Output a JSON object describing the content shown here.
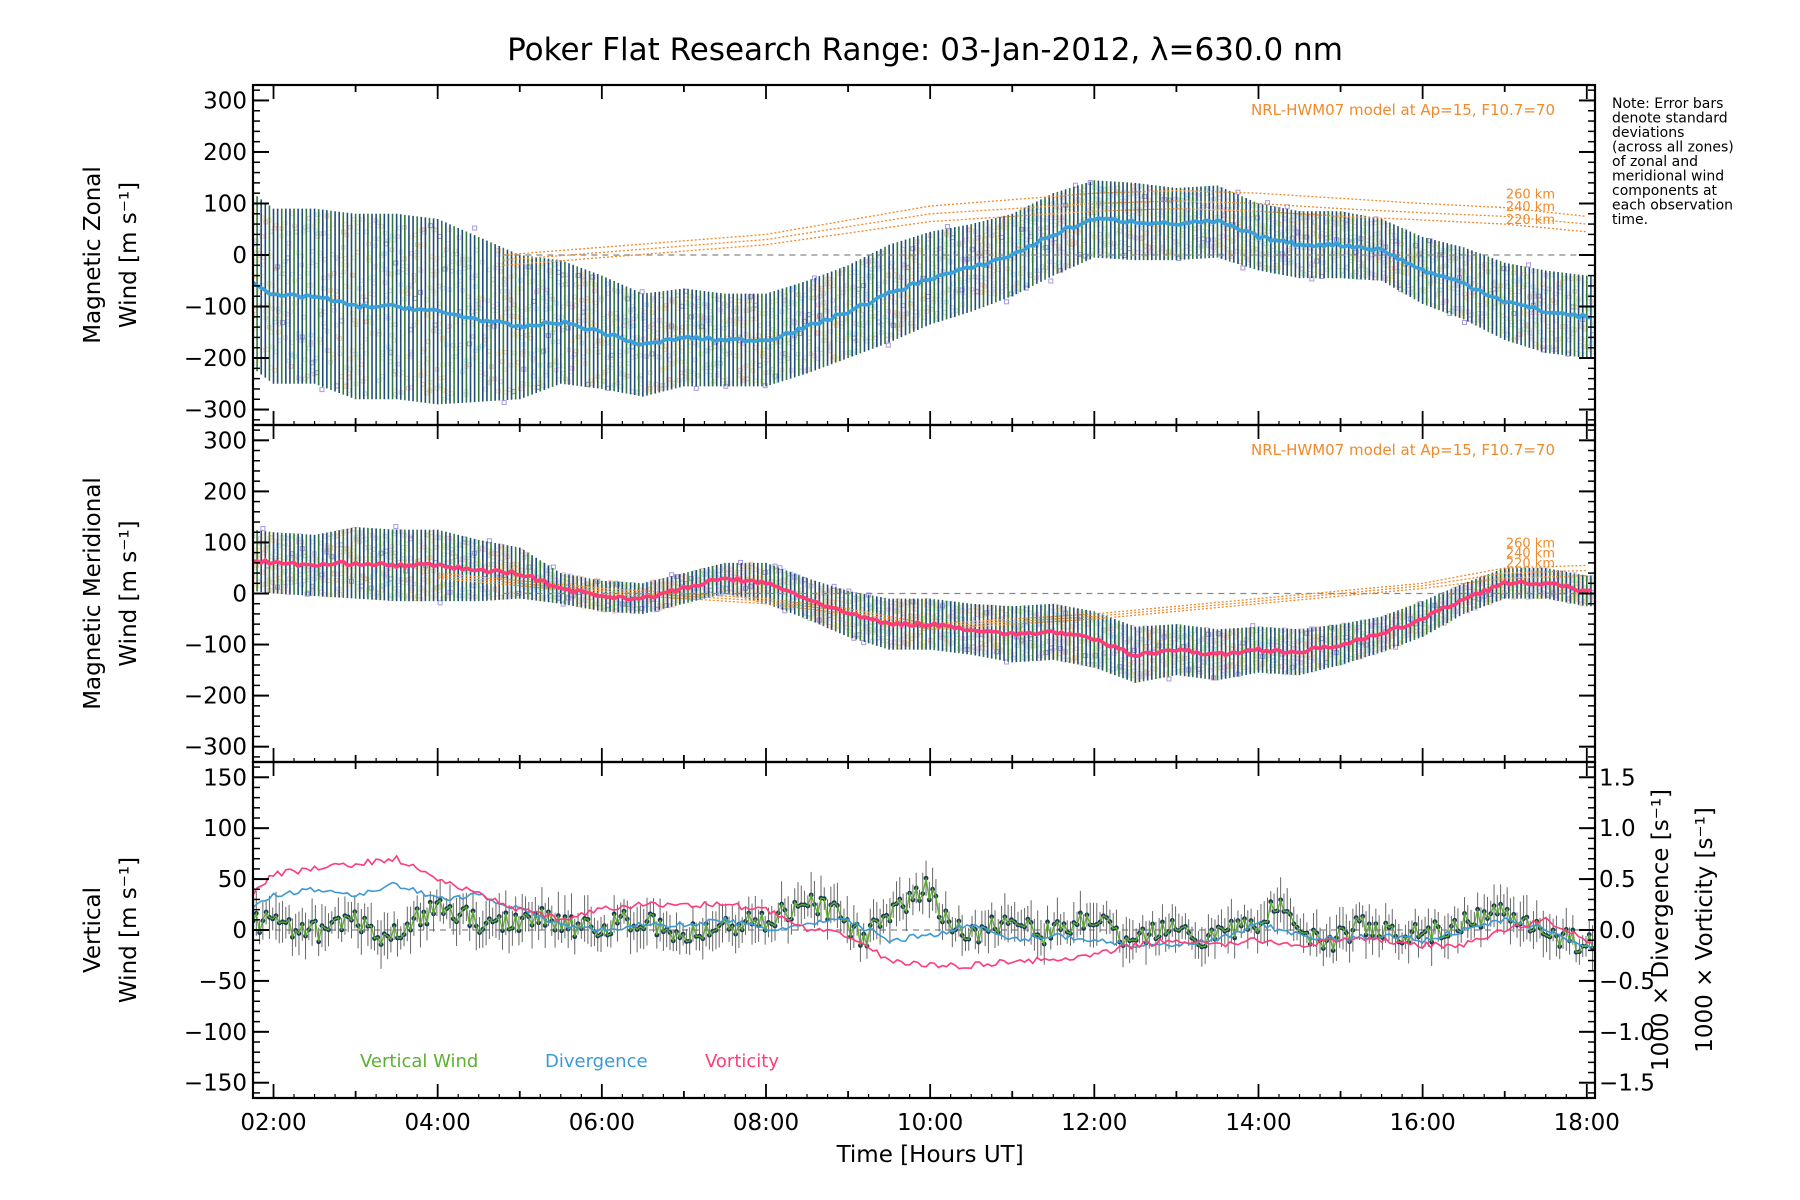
{
  "title": "Poker Flat Research Range: 03-Jan-2012, λ=630.0 nm",
  "note": [
    "Note: Error bars",
    "denote standard",
    "deviations",
    "(across all zones)",
    "of zonal and",
    "meridional wind",
    "components at",
    "each observation",
    "time."
  ],
  "colors": {
    "zonal": "#3aa0dc",
    "meridional": "#ff3c78",
    "vertical": "#5db030",
    "divergence": "#3c9ad2",
    "vorticity": "#ff3c78",
    "model": "#f08a2a",
    "errorbar": "#1f4e79",
    "zone_cloud": "#f4b89a",
    "purple_points": "#a89ae0"
  },
  "chart_data": [
    {
      "type": "line",
      "panel": "zonal",
      "ylabel": [
        "Magnetic Zonal",
        "Wind [m s⁻¹]"
      ],
      "ylim": [
        -330,
        330
      ],
      "xlim": [
        1.75,
        18.1
      ],
      "yticks": [
        "300",
        "200",
        "100",
        "0",
        "−100",
        "−200",
        "−300"
      ],
      "model_label": "NRL-HWM07 model at Ap=15, F10.7=70",
      "model_heights": [
        "260 km",
        "240 km",
        "220 km"
      ],
      "model_series": [
        {
          "name": "260 km",
          "x": [
            4.8,
            8,
            10,
            12,
            13,
            14,
            15,
            16,
            17,
            18
          ],
          "y": [
            0,
            40,
            95,
            120,
            125,
            120,
            110,
            100,
            92,
            75
          ]
        },
        {
          "name": "240 km",
          "x": [
            4.8,
            8,
            10,
            12,
            13,
            14,
            15,
            16,
            17,
            18
          ],
          "y": [
            -10,
            30,
            80,
            100,
            105,
            100,
            90,
            82,
            75,
            60
          ]
        },
        {
          "name": "220 km",
          "x": [
            4.8,
            8,
            10,
            12,
            13,
            14,
            15,
            16,
            17,
            18
          ],
          "y": [
            -20,
            20,
            65,
            85,
            90,
            85,
            75,
            68,
            60,
            45
          ]
        }
      ],
      "series": [
        {
          "name": "Zonal mean",
          "x": [
            1.75,
            2,
            2.5,
            3,
            3.5,
            4,
            4.5,
            5,
            5.5,
            6,
            6.5,
            7,
            7.5,
            8,
            8.5,
            9,
            9.5,
            10,
            10.5,
            11,
            11.5,
            12,
            12.5,
            13,
            13.5,
            14,
            14.5,
            15,
            15.5,
            16,
            16.5,
            17,
            17.5,
            18
          ],
          "y": [
            -50,
            -80,
            -80,
            -100,
            -100,
            -110,
            -125,
            -140,
            -130,
            -150,
            -175,
            -160,
            -165,
            -165,
            -140,
            -110,
            -75,
            -45,
            -25,
            0,
            40,
            70,
            65,
            60,
            65,
            35,
            20,
            20,
            10,
            -30,
            -55,
            -90,
            -110,
            -120
          ]
        }
      ],
      "error_bar_sd": [
        170,
        170,
        170,
        180,
        180,
        180,
        160,
        140,
        120,
        110,
        100,
        95,
        90,
        90,
        90,
        90,
        95,
        90,
        85,
        80,
        80,
        75,
        75,
        70,
        70,
        65,
        65,
        65,
        60,
        65,
        70,
        75,
        80,
        80
      ]
    },
    {
      "type": "line",
      "panel": "meridional",
      "ylabel": [
        "Magnetic Meridional",
        "Wind [m s⁻¹]"
      ],
      "ylim": [
        -330,
        330
      ],
      "xlim": [
        1.75,
        18.1
      ],
      "yticks": [
        "300",
        "200",
        "100",
        "0",
        "−100",
        "−200",
        "−300"
      ],
      "model_label": "NRL-HWM07 model at Ap=15, F10.7=70",
      "model_heights": [
        "260 km",
        "240 km",
        "220 km"
      ],
      "model_series": [
        {
          "name": "260 km",
          "x": [
            4,
            6,
            7,
            8,
            9,
            10,
            12,
            14,
            16,
            17,
            18
          ],
          "y": [
            40,
            10,
            0,
            -10,
            -30,
            -60,
            -40,
            -10,
            20,
            50,
            55
          ]
        },
        {
          "name": "240 km",
          "x": [
            4,
            6,
            7,
            8,
            9,
            10,
            12,
            14,
            16,
            17,
            18
          ],
          "y": [
            35,
            5,
            -5,
            -15,
            -35,
            -65,
            -45,
            -15,
            15,
            40,
            45
          ]
        },
        {
          "name": "220 km",
          "x": [
            4,
            6,
            7,
            8,
            9,
            10,
            12,
            14,
            16,
            17,
            18
          ],
          "y": [
            30,
            0,
            -10,
            -20,
            -40,
            -70,
            -50,
            -20,
            10,
            30,
            35
          ]
        }
      ],
      "series": [
        {
          "name": "Meridional mean",
          "x": [
            1.75,
            2,
            2.5,
            3,
            3.5,
            4,
            4.5,
            5,
            5.5,
            6,
            6.5,
            7,
            7.5,
            8,
            8.5,
            9,
            9.5,
            10,
            10.5,
            11,
            11.5,
            12,
            12.5,
            13,
            13.5,
            14,
            14.5,
            15,
            15.5,
            16,
            16.5,
            17,
            17.5,
            18
          ],
          "y": [
            65,
            60,
            55,
            60,
            55,
            55,
            45,
            40,
            10,
            -5,
            -10,
            10,
            30,
            20,
            -10,
            -40,
            -60,
            -60,
            -70,
            -80,
            -75,
            -90,
            -120,
            -110,
            -120,
            -110,
            -115,
            -100,
            -80,
            -50,
            -10,
            20,
            20,
            5
          ]
        }
      ],
      "error_bar_sd": [
        60,
        60,
        60,
        70,
        70,
        70,
        60,
        50,
        30,
        30,
        30,
        30,
        30,
        40,
        40,
        45,
        50,
        50,
        50,
        55,
        55,
        55,
        55,
        50,
        50,
        45,
        45,
        40,
        35,
        35,
        30,
        30,
        30,
        30
      ]
    },
    {
      "type": "line",
      "panel": "vertical",
      "ylabel": [
        "Vertical",
        "Wind [m s⁻¹]"
      ],
      "ylim": [
        -165,
        165
      ],
      "xlim": [
        1.75,
        18.1
      ],
      "yticks": [
        "150",
        "100",
        "50",
        "0",
        "−50",
        "−100",
        "−150"
      ],
      "y2label": [
        "1000 × Divergence [s⁻¹]",
        "1000 × Vorticity [s⁻¹]"
      ],
      "y2lim": [
        -1.65,
        1.65
      ],
      "y2ticks": [
        "1.5",
        "1.0",
        "0.5",
        "0.0",
        "−0.5",
        "−1.0",
        "−1.5"
      ],
      "xticks": [
        "02:00",
        "04:00",
        "06:00",
        "08:00",
        "10:00",
        "12:00",
        "14:00",
        "16:00",
        "18:00"
      ],
      "xtick_values": [
        2,
        4,
        6,
        8,
        10,
        12,
        14,
        16,
        18
      ],
      "xlabel": "Time [Hours UT]",
      "legend": [
        "Vertical Wind",
        "Divergence",
        "Vorticity"
      ],
      "series": [
        {
          "name": "Vertical Wind",
          "axis": "left",
          "x": [
            1.75,
            2,
            2.3,
            2.6,
            3,
            3.3,
            3.6,
            4,
            4.3,
            4.6,
            5,
            5.3,
            5.6,
            6,
            6.3,
            6.6,
            7,
            7.3,
            7.6,
            8,
            8.3,
            8.6,
            8.9,
            9.2,
            9.5,
            9.8,
            9.95,
            10.2,
            10.5,
            10.8,
            11,
            11.3,
            11.6,
            12,
            12.3,
            12.6,
            13,
            13.3,
            13.6,
            14,
            14.2,
            14.5,
            14.8,
            15,
            15.3,
            15.6,
            16,
            16.3,
            16.6,
            17,
            17.3,
            17.6,
            18
          ],
          "y": [
            5,
            10,
            -5,
            0,
            10,
            -15,
            5,
            20,
            15,
            5,
            10,
            15,
            5,
            0,
            10,
            5,
            -5,
            0,
            5,
            10,
            20,
            25,
            15,
            -10,
            15,
            30,
            40,
            10,
            -5,
            5,
            10,
            -5,
            0,
            15,
            -10,
            -5,
            10,
            -10,
            0,
            5,
            25,
            5,
            -15,
            -5,
            5,
            -5,
            0,
            -5,
            10,
            20,
            10,
            -5,
            -15
          ]
        },
        {
          "name": "Divergence",
          "axis": "right",
          "x": [
            1.75,
            2,
            2.5,
            3,
            3.5,
            4,
            4.5,
            5,
            5.5,
            6,
            6.5,
            7,
            7.5,
            8,
            8.5,
            9,
            9.5,
            10,
            10.5,
            11,
            11.5,
            12,
            12.5,
            13,
            13.5,
            14,
            14.5,
            15,
            15.5,
            16,
            16.5,
            17,
            17.5,
            18
          ],
          "y": [
            0.2,
            0.35,
            0.4,
            0.35,
            0.45,
            0.3,
            0.35,
            0.2,
            0.05,
            0.0,
            0.05,
            0.05,
            0.1,
            0.0,
            0.05,
            0.1,
            -0.1,
            -0.05,
            0.05,
            -0.1,
            -0.05,
            -0.1,
            -0.15,
            -0.15,
            -0.1,
            0.05,
            -0.05,
            -0.1,
            -0.05,
            -0.1,
            0.0,
            0.1,
            0.0,
            -0.15
          ]
        },
        {
          "name": "Vorticity",
          "axis": "right",
          "x": [
            1.75,
            2,
            2.5,
            3,
            3.5,
            4,
            4.5,
            5,
            5.5,
            6,
            6.5,
            7,
            7.5,
            8,
            8.5,
            9,
            9.5,
            10,
            10.5,
            11,
            11.5,
            12,
            12.5,
            13,
            13.5,
            14,
            14.5,
            15,
            15.5,
            16,
            16.5,
            17,
            17.5,
            18
          ],
          "y": [
            0.35,
            0.55,
            0.6,
            0.65,
            0.7,
            0.5,
            0.35,
            0.2,
            0.1,
            0.2,
            0.25,
            0.25,
            0.25,
            0.2,
            0.0,
            -0.05,
            -0.3,
            -0.35,
            -0.35,
            -0.3,
            -0.3,
            -0.25,
            -0.15,
            -0.1,
            -0.15,
            -0.1,
            -0.15,
            -0.1,
            -0.1,
            -0.15,
            -0.15,
            0.0,
            0.1,
            -0.1
          ]
        }
      ]
    }
  ]
}
